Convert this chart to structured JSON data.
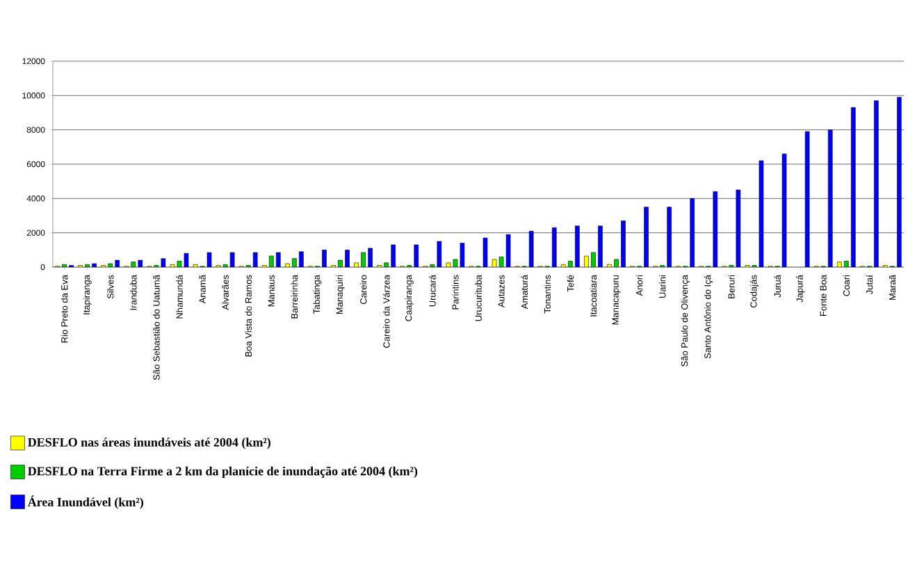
{
  "chart_data": {
    "type": "bar",
    "categories": [
      "Rio Preto da Eva",
      "Itapiranga",
      "Silves",
      "Iranduba",
      "São Sebastião do Uatumã",
      "Nhamundá",
      "Anamã",
      "Alvarães",
      "Boa Vista do Ramos",
      "Manaus",
      "Barreirinha",
      "Tabatinga",
      "Manaquiri",
      "Careiro",
      "Careiro da Várzea",
      "Caapiranga",
      "Urucará",
      "Parintins",
      "Urucurituba",
      "Autazes",
      "Amaturá",
      "Tonantins",
      "Tefé",
      "Itacoatiara",
      "Manacapuru",
      "Anori",
      "Uarini",
      "São Paulo de Olivença",
      "Santo Antônio do Içá",
      "Beruri",
      "Codajás",
      "Juruá",
      "Japurá",
      "Fonte Boa",
      "Coari",
      "Jutaí",
      "Maraã"
    ],
    "series": [
      {
        "name": "DESFLO nas áreas inundáveis até 2004 (km²)",
        "color": "#ffff00",
        "values": [
          50,
          100,
          100,
          50,
          50,
          150,
          150,
          100,
          50,
          100,
          200,
          50,
          100,
          250,
          100,
          50,
          50,
          250,
          50,
          450,
          50,
          50,
          150,
          650,
          150,
          50,
          50,
          50,
          50,
          50,
          100,
          50,
          null,
          50,
          300,
          50,
          100
        ]
      },
      {
        "name": "DESFLO na Terra Firme a 2 km da planície de inundação até 2004 (km²)",
        "color": "#00cc00",
        "values": [
          150,
          150,
          200,
          300,
          100,
          350,
          50,
          150,
          100,
          650,
          500,
          50,
          400,
          850,
          250,
          100,
          150,
          450,
          50,
          600,
          50,
          50,
          350,
          850,
          450,
          50,
          100,
          50,
          50,
          100,
          100,
          50,
          null,
          50,
          350,
          50,
          50
        ]
      },
      {
        "name": "Área Inundável (km²)",
        "color": "#0000ff",
        "values": [
          100,
          200,
          400,
          400,
          500,
          800,
          850,
          850,
          850,
          850,
          900,
          1000,
          1000,
          1100,
          1300,
          1300,
          1500,
          1400,
          1700,
          1900,
          2100,
          2300,
          2400,
          2400,
          2700,
          3500,
          3500,
          4000,
          4400,
          4500,
          6200,
          6600,
          7900,
          8000,
          9300,
          9700,
          9900
        ]
      }
    ],
    "ylim": [
      0,
      12000
    ],
    "yticks": [
      0,
      2000,
      4000,
      6000,
      8000,
      10000,
      12000
    ],
    "grid": "y",
    "legend": "bottom left"
  }
}
